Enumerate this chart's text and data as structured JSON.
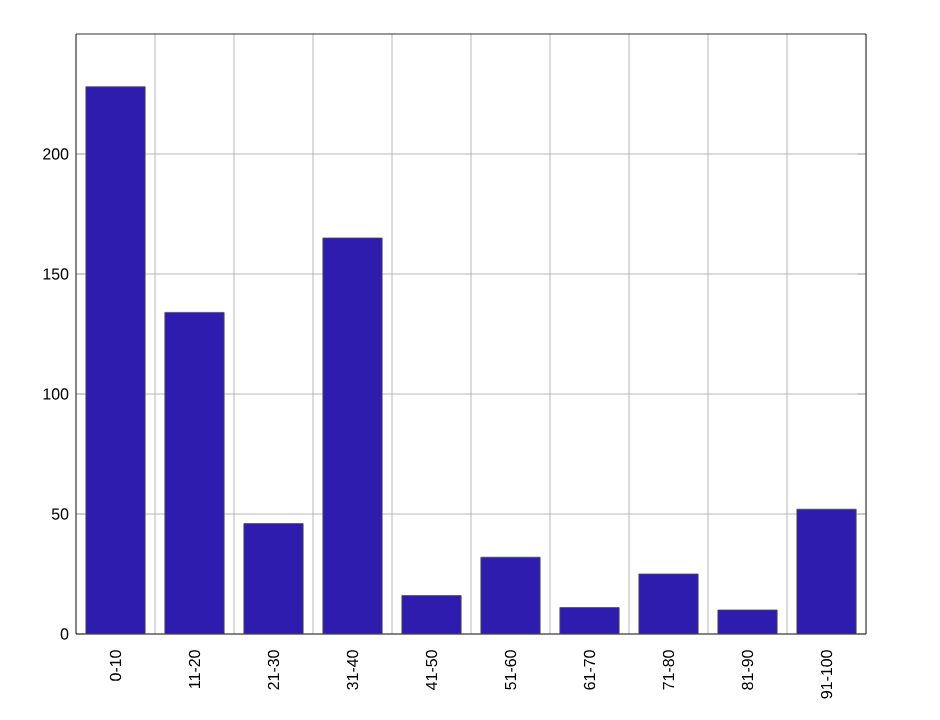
{
  "chart_data": {
    "type": "bar",
    "categories": [
      "0-10",
      "11-20",
      "21-30",
      "31-40",
      "41-50",
      "51-60",
      "61-70",
      "71-80",
      "81-90",
      "91-100"
    ],
    "values": [
      228,
      134,
      46,
      165,
      16,
      32,
      11,
      25,
      10,
      52
    ],
    "color": "#2e1cae",
    "ylim": [
      0,
      250
    ],
    "yticks": [
      0,
      50,
      100,
      150,
      200
    ],
    "grid": true
  }
}
